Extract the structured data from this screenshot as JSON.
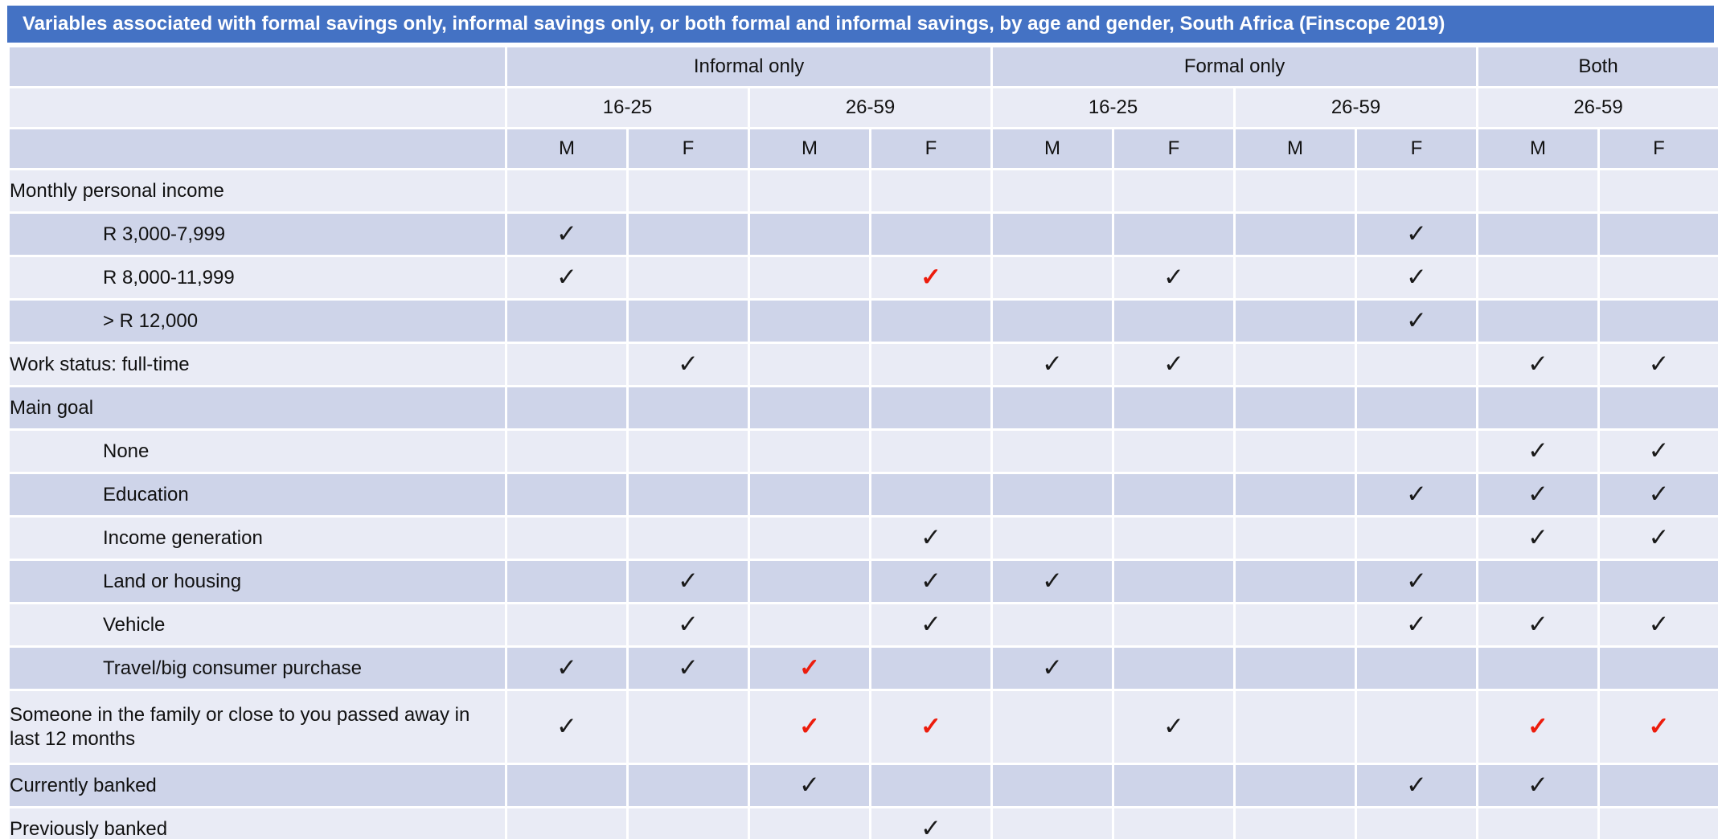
{
  "title": "Variables associated with formal savings only, informal savings only, or both formal and informal savings, by age and gender, South Africa (Finscope 2019)",
  "check_glyph": "✓",
  "colors": {
    "title_bg": "#4472C4",
    "title_text": "#FFFFFF",
    "band_dark": "#CED4E9",
    "band_light": "#E9EBF5",
    "check_black": "#1A1A1A",
    "check_red": "#EC1C0C"
  },
  "header": {
    "groups": [
      {
        "label": "Informal only",
        "span": 4
      },
      {
        "label": "Formal only",
        "span": 4
      },
      {
        "label": "Both",
        "span": 2
      }
    ],
    "age_groups": [
      {
        "label": "16-25",
        "span": 2
      },
      {
        "label": "26-59",
        "span": 2
      },
      {
        "label": "16-25",
        "span": 2
      },
      {
        "label": "26-59",
        "span": 2
      },
      {
        "label": "26-59",
        "span": 2
      }
    ],
    "genders": [
      "M",
      "F",
      "M",
      "F",
      "M",
      "F",
      "M",
      "F",
      "M",
      "F"
    ]
  },
  "rows": [
    {
      "label": "Monthly personal income",
      "indent": false,
      "checks": [
        "",
        "",
        "",
        "",
        "",
        "",
        "",
        "",
        "",
        ""
      ]
    },
    {
      "label": "R 3,000-7,999",
      "indent": true,
      "checks": [
        "black",
        "",
        "",
        "",
        "",
        "",
        "",
        "black",
        "",
        ""
      ]
    },
    {
      "label": "R 8,000-11,999",
      "indent": true,
      "checks": [
        "black",
        "",
        "",
        "red",
        "",
        "black",
        "",
        "black",
        "",
        ""
      ]
    },
    {
      "label": "> R 12,000",
      "indent": true,
      "checks": [
        "",
        "",
        "",
        "",
        "",
        "",
        "",
        "black",
        "",
        ""
      ]
    },
    {
      "label": "Work status: full-time",
      "indent": false,
      "checks": [
        "",
        "black",
        "",
        "",
        "black",
        "black",
        "",
        "",
        "black",
        "black"
      ]
    },
    {
      "label": "Main goal",
      "indent": false,
      "checks": [
        "",
        "",
        "",
        "",
        "",
        "",
        "",
        "",
        "",
        ""
      ]
    },
    {
      "label": "None",
      "indent": true,
      "checks": [
        "",
        "",
        "",
        "",
        "",
        "",
        "",
        "",
        "black",
        "black"
      ]
    },
    {
      "label": "Education",
      "indent": true,
      "checks": [
        "",
        "",
        "",
        "",
        "",
        "",
        "",
        "black",
        "black",
        "black"
      ]
    },
    {
      "label": "Income generation",
      "indent": true,
      "checks": [
        "",
        "",
        "",
        "black",
        "",
        "",
        "",
        "",
        "black",
        "black"
      ]
    },
    {
      "label": "Land or housing",
      "indent": true,
      "checks": [
        "",
        "black",
        "",
        "black",
        "black",
        "",
        "",
        "black",
        "",
        ""
      ]
    },
    {
      "label": "Vehicle",
      "indent": true,
      "checks": [
        "",
        "black",
        "",
        "black",
        "",
        "",
        "",
        "black",
        "black",
        "black"
      ]
    },
    {
      "label": "Travel/big consumer purchase",
      "indent": true,
      "checks": [
        "black",
        "black",
        "red",
        "",
        "black",
        "",
        "",
        "",
        "",
        ""
      ]
    },
    {
      "label": "Someone in the family or close to you passed away in last 12 months",
      "indent": false,
      "tall": true,
      "checks": [
        "black",
        "",
        "red",
        "red",
        "",
        "black",
        "",
        "",
        "red",
        "red"
      ]
    },
    {
      "label": "Currently banked",
      "indent": false,
      "checks": [
        "",
        "",
        "black",
        "",
        "",
        "",
        "",
        "black",
        "black",
        ""
      ]
    },
    {
      "label": "Previously banked",
      "indent": false,
      "checks": [
        "",
        "",
        "",
        "black",
        "",
        "",
        "",
        "",
        "",
        ""
      ]
    }
  ]
}
